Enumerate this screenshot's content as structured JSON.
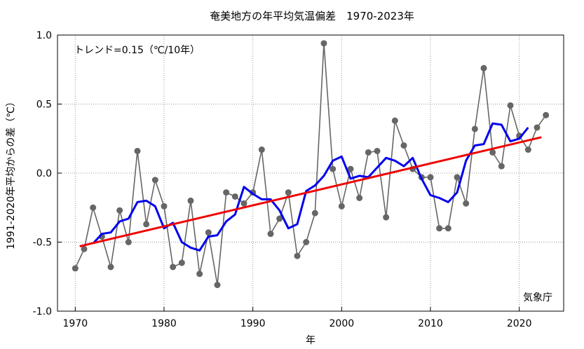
{
  "chart_data": {
    "type": "line",
    "title": "奄美地方の年平均気温偏差　1970-2023年",
    "xlabel": "年",
    "ylabel": "1991-2020年平均からの差（℃）",
    "annotation": "トレンド=0.15（℃/10年）",
    "source_label": "気象庁",
    "xlim": [
      1968,
      2025
    ],
    "ylim": [
      -1.0,
      1.0
    ],
    "x_ticks": [
      1970,
      1980,
      1990,
      2000,
      2010,
      2020
    ],
    "x_tick_labels": [
      "1970",
      "1980",
      "1990",
      "2000",
      "2010",
      "2020"
    ],
    "y_ticks": [
      -1.0,
      -0.5,
      0.0,
      0.5,
      1.0
    ],
    "y_tick_labels": [
      "-1.0",
      "-0.5",
      "0.0",
      "0.5",
      "1.0"
    ],
    "grid": true,
    "colors": {
      "annual": "#666666",
      "moving_average": "#0000ee",
      "trend": "#ee0000"
    },
    "series": [
      {
        "kind": "annual",
        "x": [
          1970,
          1971,
          1972,
          1973,
          1974,
          1975,
          1976,
          1977,
          1978,
          1979,
          1980,
          1981,
          1982,
          1983,
          1984,
          1985,
          1986,
          1987,
          1988,
          1989,
          1990,
          1991,
          1992,
          1993,
          1994,
          1995,
          1996,
          1997,
          1998,
          1999,
          2000,
          2001,
          2002,
          2003,
          2004,
          2005,
          2006,
          2007,
          2008,
          2009,
          2010,
          2011,
          2012,
          2013,
          2014,
          2015,
          2016,
          2017,
          2018,
          2019,
          2020,
          2021,
          2022,
          2023
        ],
        "values": [
          -0.69,
          -0.55,
          -0.25,
          -0.46,
          -0.68,
          -0.27,
          -0.5,
          0.16,
          -0.37,
          -0.05,
          -0.24,
          -0.68,
          -0.65,
          -0.2,
          -0.73,
          -0.43,
          -0.81,
          -0.14,
          -0.17,
          -0.22,
          -0.14,
          0.17,
          -0.44,
          -0.33,
          -0.14,
          -0.6,
          -0.5,
          -0.29,
          0.94,
          0.03,
          -0.24,
          0.03,
          -0.18,
          0.15,
          0.16,
          -0.32,
          0.38,
          0.2,
          0.03,
          -0.03,
          -0.03,
          -0.4,
          -0.4,
          -0.03,
          -0.22,
          0.32,
          0.76,
          0.15,
          0.05,
          0.49,
          0.27,
          0.17,
          0.33,
          0.42
        ]
      },
      {
        "kind": "moving_average",
        "x": [
          1972,
          1973,
          1974,
          1975,
          1976,
          1977,
          1978,
          1979,
          1980,
          1981,
          1982,
          1983,
          1984,
          1985,
          1986,
          1987,
          1988,
          1989,
          1990,
          1991,
          1992,
          1993,
          1994,
          1995,
          1996,
          1997,
          1998,
          1999,
          2000,
          2001,
          2002,
          2003,
          2004,
          2005,
          2006,
          2007,
          2008,
          2009,
          2010,
          2011,
          2012,
          2013,
          2014,
          2015,
          2016,
          2017,
          2018,
          2019,
          2020,
          2021
        ],
        "values": [
          -0.51,
          -0.44,
          -0.43,
          -0.35,
          -0.33,
          -0.21,
          -0.2,
          -0.24,
          -0.4,
          -0.36,
          -0.5,
          -0.54,
          -0.56,
          -0.46,
          -0.45,
          -0.35,
          -0.3,
          -0.1,
          -0.15,
          -0.19,
          -0.19,
          -0.27,
          -0.4,
          -0.37,
          -0.13,
          -0.09,
          -0.02,
          0.09,
          0.12,
          -0.04,
          -0.02,
          -0.03,
          0.04,
          0.11,
          0.09,
          0.05,
          0.11,
          -0.04,
          -0.16,
          -0.18,
          -0.21,
          -0.14,
          0.09,
          0.2,
          0.21,
          0.36,
          0.35,
          0.23,
          0.25,
          0.33
        ]
      },
      {
        "kind": "trend",
        "x": [
          1970.5,
          2022.5
        ],
        "values": [
          -0.53,
          0.26
        ]
      }
    ]
  }
}
